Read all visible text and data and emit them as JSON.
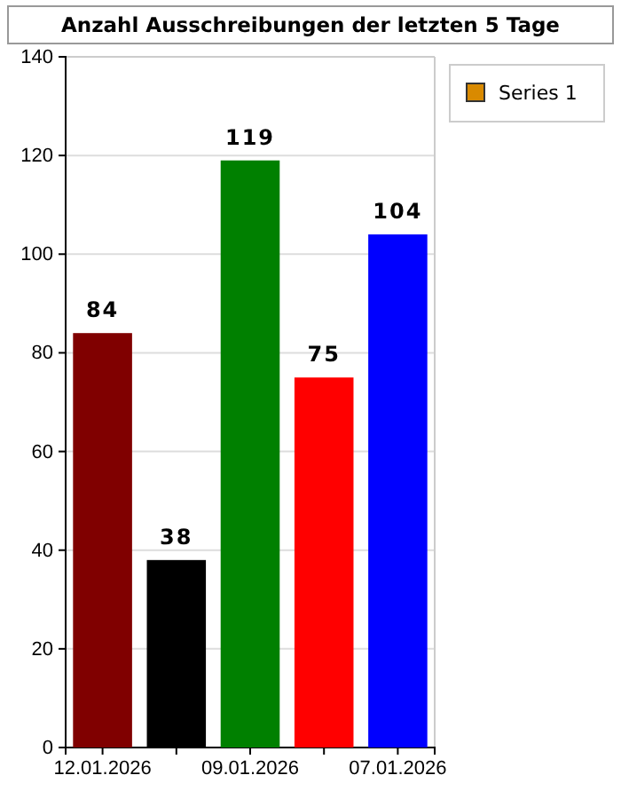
{
  "chart_data": {
    "type": "bar",
    "title": "Anzahl Ausschreibungen der letzten 5 Tage",
    "categories": [
      "12.01.2026",
      null,
      "09.01.2026",
      null,
      "07.01.2026"
    ],
    "series": [
      {
        "name": "Series 1",
        "color": "#d98a00",
        "colors": [
          "#800000",
          "#000000",
          "#008000",
          "#ff0000",
          "#0000ff"
        ],
        "values": [
          84,
          38,
          119,
          75,
          104
        ]
      }
    ],
    "ylim": [
      0,
      140
    ],
    "yticks": [
      0,
      20,
      40,
      60,
      80,
      100,
      120,
      140
    ],
    "grid": "y",
    "legend": "top right",
    "data_labels": true
  }
}
